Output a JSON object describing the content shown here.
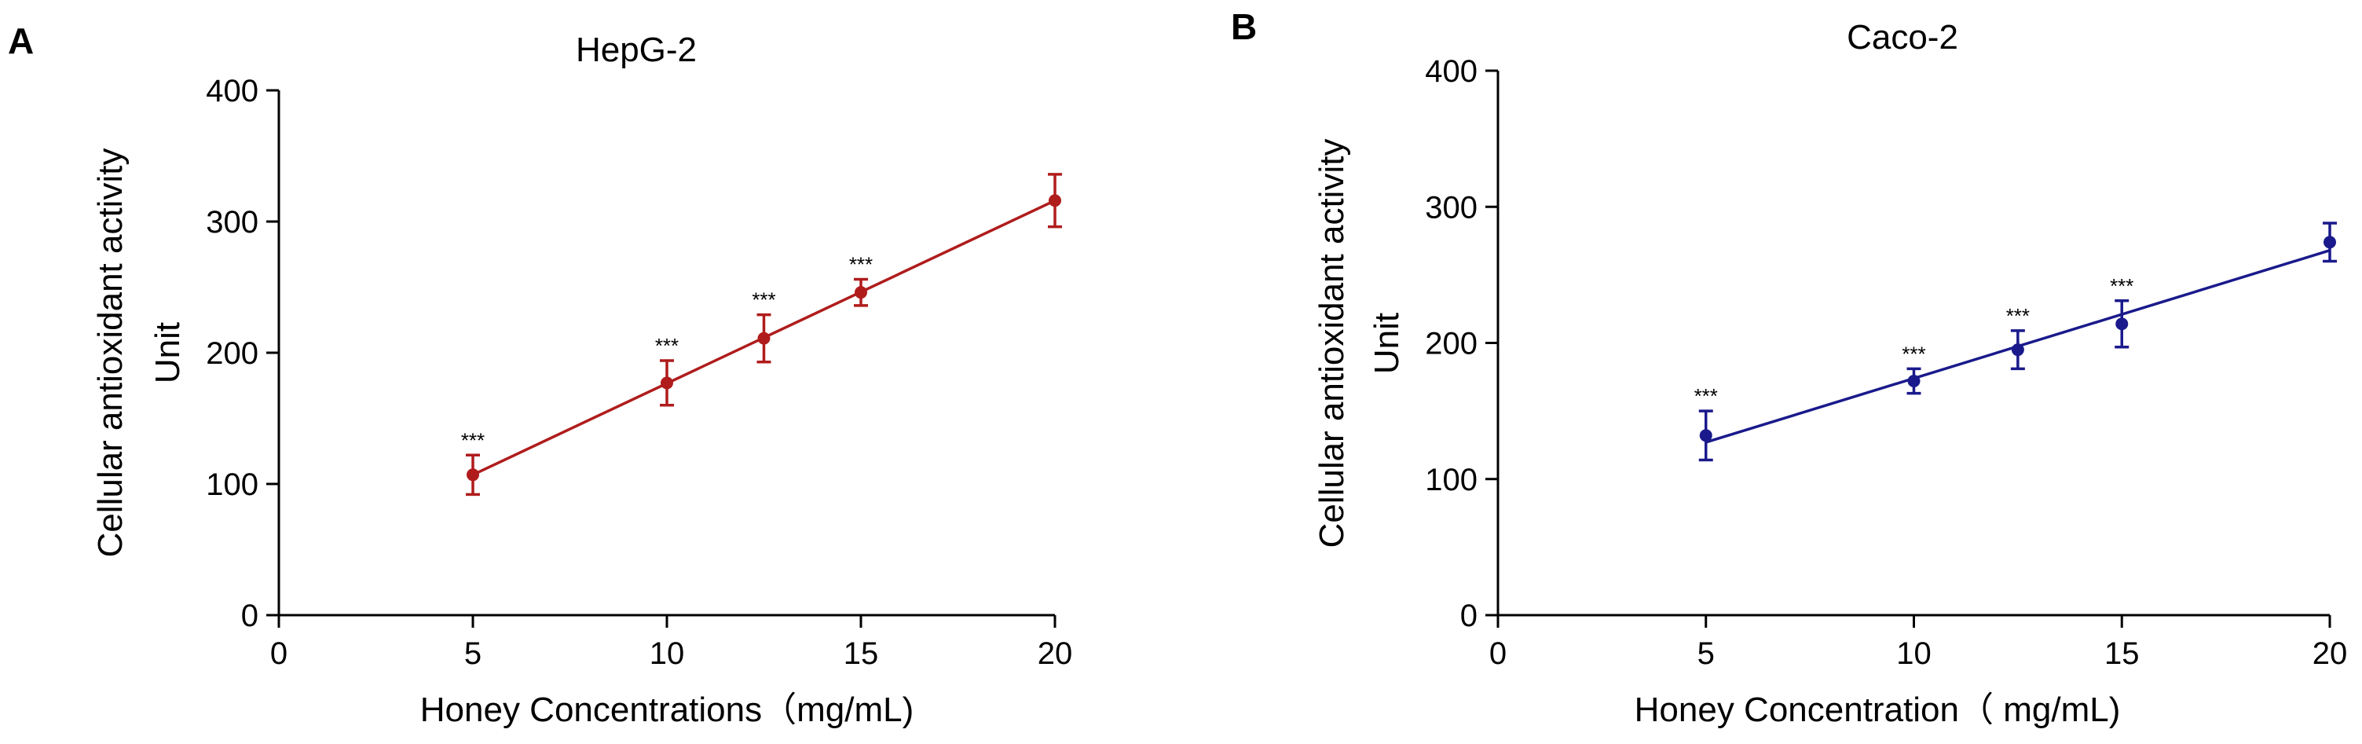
{
  "chart_data": [
    {
      "type": "scatter",
      "panel_label": "A",
      "title": "HepG-2",
      "xlabel": "Honey Concentrations（mg/mL)",
      "ylabel_lines": [
        "Cellular antioxidant activity",
        "Unit"
      ],
      "xlim": [
        0,
        20
      ],
      "ylim": [
        0,
        400
      ],
      "xticks": [
        0,
        5,
        10,
        15,
        20
      ],
      "yticks": [
        0,
        100,
        200,
        300,
        400
      ],
      "color": "#b01c1c",
      "series": [
        {
          "name": "HepG-2",
          "x": [
            5,
            10,
            12.5,
            15,
            20
          ],
          "y": [
            107,
            177,
            211,
            246,
            316
          ],
          "err": [
            15,
            17,
            18,
            10,
            20
          ],
          "significance": [
            "***",
            "***",
            "***",
            "***",
            ""
          ]
        }
      ],
      "fit_line": {
        "x": [
          5,
          20
        ],
        "y": [
          107,
          316
        ]
      }
    },
    {
      "type": "scatter",
      "panel_label": "B",
      "title": "Caco-2",
      "xlabel": "Honey Concentration（ mg/mL)",
      "ylabel_lines": [
        "Cellular antioxidant activity",
        "Unit"
      ],
      "xlim": [
        0,
        20
      ],
      "ylim": [
        0,
        400
      ],
      "xticks": [
        0,
        5,
        10,
        15,
        20
      ],
      "yticks": [
        0,
        100,
        200,
        300,
        400
      ],
      "color": "#1a1a8c",
      "series": [
        {
          "name": "Caco-2",
          "x": [
            5,
            10,
            12.5,
            15,
            20
          ],
          "y": [
            132,
            172,
            195,
            214,
            274
          ],
          "err": [
            18,
            9,
            14,
            17,
            14
          ],
          "significance": [
            "***",
            "***",
            "***",
            "***",
            ""
          ]
        }
      ],
      "fit_line": {
        "x": [
          5,
          20
        ],
        "y": [
          127,
          268
        ]
      }
    }
  ]
}
